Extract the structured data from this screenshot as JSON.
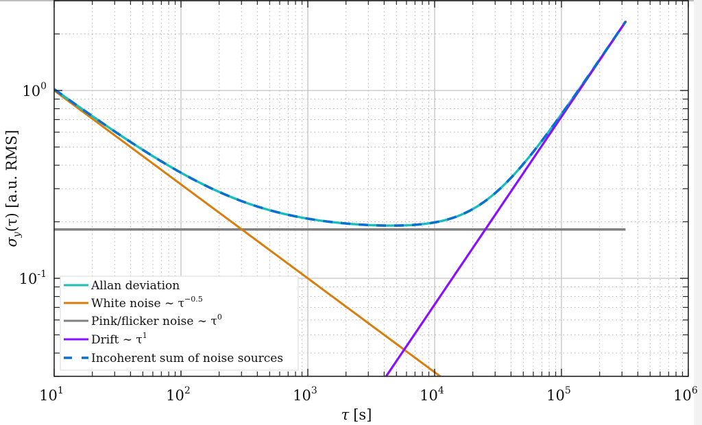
{
  "chart_data": {
    "type": "line",
    "title": "",
    "xlabel": "τ [s]",
    "ylabel": "σ_y(τ) [a.u. RMS]",
    "xscale": "log",
    "yscale": "log",
    "xlim": [
      10,
      1000000
    ],
    "ylim": [
      0.03,
      3.0
    ],
    "grid": {
      "major": true,
      "minor": true
    },
    "xticks": [
      {
        "base": "10",
        "exp": "1",
        "value": 10
      },
      {
        "base": "10",
        "exp": "2",
        "value": 100
      },
      {
        "base": "10",
        "exp": "3",
        "value": 1000
      },
      {
        "base": "10",
        "exp": "4",
        "value": 10000
      },
      {
        "base": "10",
        "exp": "5",
        "value": 100000
      },
      {
        "base": "10",
        "exp": "6",
        "value": 1000000
      }
    ],
    "yticks": [
      {
        "base": "10",
        "exp": "0",
        "value": 1
      },
      {
        "base": "10",
        "exp": "-1",
        "value": 0.1
      }
    ],
    "legend_position": "lower left",
    "series": [
      {
        "name": "Allan deviation",
        "color": "#17bebb",
        "style": "solid",
        "x": [
          10,
          31.6,
          100,
          316,
          1000,
          3162,
          10000,
          31623,
          100000,
          316228
        ],
        "values": [
          1.016,
          0.584,
          0.362,
          0.255,
          0.207,
          0.19,
          0.198,
          0.31,
          0.763,
          2.3
        ]
      },
      {
        "name": "White noise ~ τ^-0.5",
        "color": "#d97d0d",
        "style": "solid",
        "x": [
          10,
          100,
          1000,
          10000,
          11000
        ],
        "values": [
          1.0,
          0.316,
          0.1,
          0.0316,
          0.03
        ]
      },
      {
        "name": "Pink/flicker noise ~ τ^0",
        "color": "#808080",
        "style": "solid",
        "x": [
          10,
          320000
        ],
        "values": [
          0.182,
          0.182
        ]
      },
      {
        "name": "Drift ~ τ^1",
        "color": "#8b0fff",
        "style": "solid",
        "x": [
          4140,
          10000,
          100000,
          320000
        ],
        "values": [
          0.03,
          0.0725,
          0.725,
          2.32
        ]
      },
      {
        "name": "Incoherent sum of noise sources",
        "color": "#0b6fd0",
        "style": "dashed",
        "x": [
          10,
          31.6,
          100,
          316,
          1000,
          3162,
          10000,
          31623,
          100000,
          316228
        ],
        "values": [
          1.016,
          0.584,
          0.362,
          0.255,
          0.207,
          0.19,
          0.198,
          0.31,
          0.763,
          2.3
        ]
      }
    ]
  },
  "legend": {
    "items": [
      {
        "label": "Allan deviation",
        "sup": ""
      },
      {
        "label": "White noise ∼ τ",
        "sup": "−0.5"
      },
      {
        "label": "Pink/flicker noise ∼ τ",
        "sup": "0"
      },
      {
        "label": "Drift ∼ τ",
        "sup": "1"
      },
      {
        "label": "Incoherent sum of noise sources",
        "sup": ""
      }
    ]
  },
  "axes": {
    "xlabel_main": "τ",
    "xlabel_unit": "[s]",
    "ylabel": "σ",
    "ylabel_sub": "y",
    "ylabel_rest": "(τ) [a.u. RMS]"
  }
}
